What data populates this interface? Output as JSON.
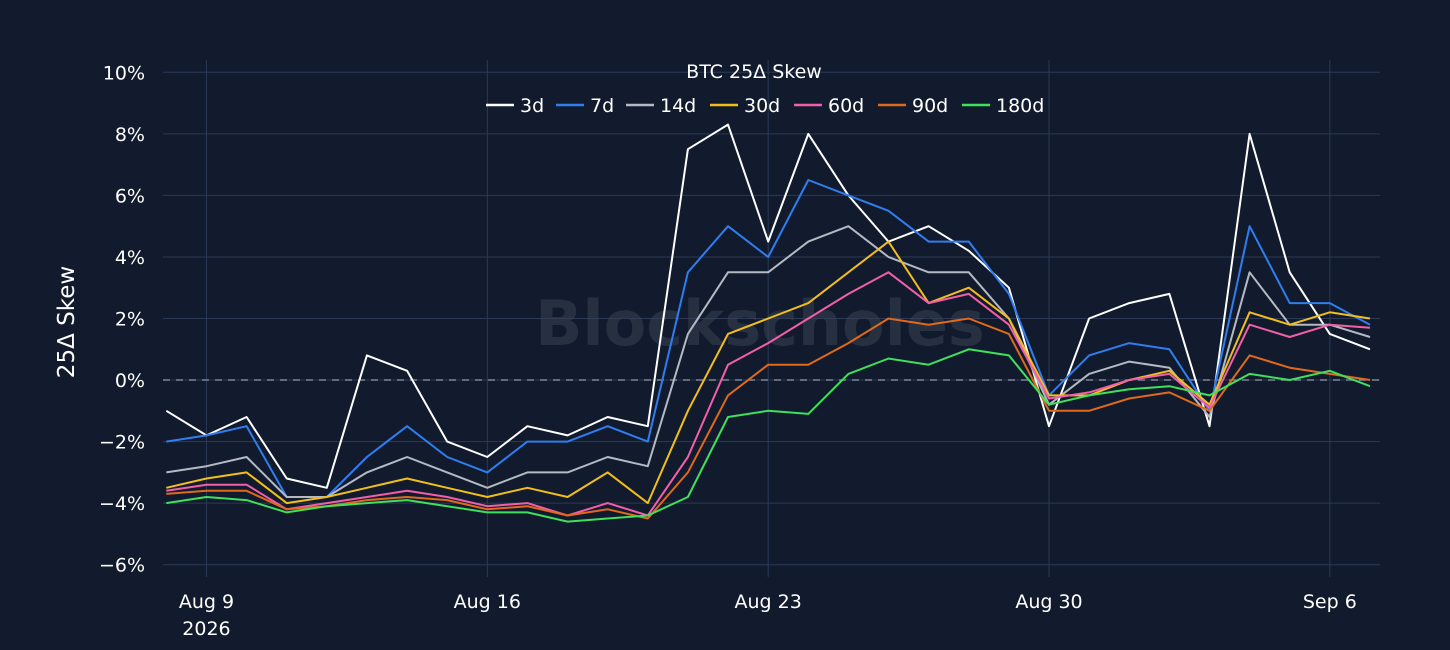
{
  "chart_data": {
    "type": "line",
    "title": "BTC 25Δ Skew",
    "ylabel": "25Δ Skew",
    "xlabel": "",
    "watermark": "Blockscholes",
    "grid": true,
    "legend_placement": "top-center",
    "ylim": [
      -6.4,
      10.4
    ],
    "xlim": [
      "2026-08-07T22:00",
      "2026-09-07T06:00"
    ],
    "y_ticks": [
      -6,
      -4,
      -2,
      0,
      2,
      4,
      6,
      8,
      10
    ],
    "y_tick_labels": [
      "−6%",
      "−4%",
      "−2%",
      "0%",
      "2%",
      "4%",
      "6%",
      "8%",
      "10%"
    ],
    "x_ticks": [
      "2026-08-09",
      "2026-08-16",
      "2026-08-23",
      "2026-08-30",
      "2026-09-06"
    ],
    "x_tick_labels": [
      "Aug 9",
      "Aug 16",
      "Aug 23",
      "Aug 30",
      "Sep 6"
    ],
    "x_tick_sublabel": "2026",
    "zero_line": true,
    "series": [
      {
        "name": "3d",
        "color": "#ffffff",
        "x": [
          "2026-08-08",
          "2026-08-09",
          "2026-08-10",
          "2026-08-11",
          "2026-08-12",
          "2026-08-13",
          "2026-08-14",
          "2026-08-15",
          "2026-08-16",
          "2026-08-17",
          "2026-08-18",
          "2026-08-19",
          "2026-08-20",
          "2026-08-21",
          "2026-08-22",
          "2026-08-23",
          "2026-08-24",
          "2026-08-25",
          "2026-08-26",
          "2026-08-27",
          "2026-08-28",
          "2026-08-29",
          "2026-08-30",
          "2026-08-31",
          "2026-09-01",
          "2026-09-02",
          "2026-09-03",
          "2026-09-04",
          "2026-09-05",
          "2026-09-06",
          "2026-09-07"
        ],
        "y": [
          -1.0,
          -1.8,
          -1.2,
          -3.2,
          -3.5,
          0.8,
          0.3,
          -2.0,
          -2.5,
          -1.5,
          -1.8,
          -1.2,
          -1.5,
          7.5,
          8.3,
          4.5,
          8.0,
          6.0,
          4.5,
          5.0,
          4.2,
          3.0,
          -1.5,
          2.0,
          2.5,
          2.8,
          -1.5,
          8.0,
          3.5,
          1.5,
          1.0
        ]
      },
      {
        "name": "7d",
        "color": "#2f7ef0",
        "x": [
          "2026-08-08",
          "2026-08-09",
          "2026-08-10",
          "2026-08-11",
          "2026-08-12",
          "2026-08-13",
          "2026-08-14",
          "2026-08-15",
          "2026-08-16",
          "2026-08-17",
          "2026-08-18",
          "2026-08-19",
          "2026-08-20",
          "2026-08-21",
          "2026-08-22",
          "2026-08-23",
          "2026-08-24",
          "2026-08-25",
          "2026-08-26",
          "2026-08-27",
          "2026-08-28",
          "2026-08-29",
          "2026-08-30",
          "2026-08-31",
          "2026-09-01",
          "2026-09-02",
          "2026-09-03",
          "2026-09-04",
          "2026-09-05",
          "2026-09-06",
          "2026-09-07"
        ],
        "y": [
          -2.0,
          -1.8,
          -1.5,
          -3.8,
          -3.8,
          -2.5,
          -1.5,
          -2.5,
          -3.0,
          -2.0,
          -2.0,
          -1.5,
          -2.0,
          3.5,
          5.0,
          4.0,
          6.5,
          6.0,
          5.5,
          4.5,
          4.5,
          2.8,
          -0.5,
          0.8,
          1.2,
          1.0,
          -1.0,
          5.0,
          2.5,
          2.5,
          1.8
        ]
      },
      {
        "name": "14d",
        "color": "#b4b9c3",
        "x": [
          "2026-08-08",
          "2026-08-09",
          "2026-08-10",
          "2026-08-11",
          "2026-08-12",
          "2026-08-13",
          "2026-08-14",
          "2026-08-15",
          "2026-08-16",
          "2026-08-17",
          "2026-08-18",
          "2026-08-19",
          "2026-08-20",
          "2026-08-21",
          "2026-08-22",
          "2026-08-23",
          "2026-08-24",
          "2026-08-25",
          "2026-08-26",
          "2026-08-27",
          "2026-08-28",
          "2026-08-29",
          "2026-08-30",
          "2026-08-31",
          "2026-09-01",
          "2026-09-02",
          "2026-09-03",
          "2026-09-04",
          "2026-09-05",
          "2026-09-06",
          "2026-09-07"
        ],
        "y": [
          -3.0,
          -2.8,
          -2.5,
          -3.8,
          -3.8,
          -3.0,
          -2.5,
          -3.0,
          -3.5,
          -3.0,
          -3.0,
          -2.5,
          -2.8,
          1.5,
          3.5,
          3.5,
          4.5,
          5.0,
          4.0,
          3.5,
          3.5,
          2.0,
          -0.8,
          0.2,
          0.6,
          0.4,
          -1.2,
          3.5,
          1.8,
          1.8,
          1.4
        ]
      },
      {
        "name": "30d",
        "color": "#f2be1b",
        "x": [
          "2026-08-08",
          "2026-08-09",
          "2026-08-10",
          "2026-08-11",
          "2026-08-12",
          "2026-08-13",
          "2026-08-14",
          "2026-08-15",
          "2026-08-16",
          "2026-08-17",
          "2026-08-18",
          "2026-08-19",
          "2026-08-20",
          "2026-08-21",
          "2026-08-22",
          "2026-08-23",
          "2026-08-24",
          "2026-08-25",
          "2026-08-26",
          "2026-08-27",
          "2026-08-28",
          "2026-08-29",
          "2026-08-30",
          "2026-08-31",
          "2026-09-01",
          "2026-09-02",
          "2026-09-03",
          "2026-09-04",
          "2026-09-05",
          "2026-09-06",
          "2026-09-07"
        ],
        "y": [
          -3.5,
          -3.2,
          -3.0,
          -4.0,
          -3.8,
          -3.5,
          -3.2,
          -3.5,
          -3.8,
          -3.5,
          -3.8,
          -3.0,
          -4.0,
          -1.0,
          1.5,
          2.0,
          2.5,
          3.5,
          4.5,
          2.5,
          3.0,
          2.0,
          -0.5,
          -0.5,
          0.0,
          0.3,
          -0.8,
          2.2,
          1.8,
          2.2,
          2.0
        ]
      },
      {
        "name": "60d",
        "color": "#f25fa8",
        "x": [
          "2026-08-08",
          "2026-08-09",
          "2026-08-10",
          "2026-08-11",
          "2026-08-12",
          "2026-08-13",
          "2026-08-14",
          "2026-08-15",
          "2026-08-16",
          "2026-08-17",
          "2026-08-18",
          "2026-08-19",
          "2026-08-20",
          "2026-08-21",
          "2026-08-22",
          "2026-08-23",
          "2026-08-24",
          "2026-08-25",
          "2026-08-26",
          "2026-08-27",
          "2026-08-28",
          "2026-08-29",
          "2026-08-30",
          "2026-08-31",
          "2026-09-01",
          "2026-09-02",
          "2026-09-03",
          "2026-09-04",
          "2026-09-05",
          "2026-09-06",
          "2026-09-07"
        ],
        "y": [
          -3.6,
          -3.4,
          -3.4,
          -4.2,
          -4.0,
          -3.8,
          -3.6,
          -3.8,
          -4.1,
          -4.0,
          -4.4,
          -4.0,
          -4.4,
          -2.5,
          0.5,
          1.2,
          2.0,
          2.8,
          3.5,
          2.5,
          2.8,
          1.8,
          -0.6,
          -0.4,
          0.0,
          0.2,
          -0.9,
          1.8,
          1.4,
          1.8,
          1.7
        ]
      },
      {
        "name": "90d",
        "color": "#e0691b",
        "x": [
          "2026-08-08",
          "2026-08-09",
          "2026-08-10",
          "2026-08-11",
          "2026-08-12",
          "2026-08-13",
          "2026-08-14",
          "2026-08-15",
          "2026-08-16",
          "2026-08-17",
          "2026-08-18",
          "2026-08-19",
          "2026-08-20",
          "2026-08-21",
          "2026-08-22",
          "2026-08-23",
          "2026-08-24",
          "2026-08-25",
          "2026-08-26",
          "2026-08-27",
          "2026-08-28",
          "2026-08-29",
          "2026-08-30",
          "2026-08-31",
          "2026-09-01",
          "2026-09-02",
          "2026-09-03",
          "2026-09-04",
          "2026-09-05",
          "2026-09-06",
          "2026-09-07"
        ],
        "y": [
          -3.7,
          -3.6,
          -3.6,
          -4.2,
          -4.1,
          -3.9,
          -3.8,
          -3.9,
          -4.2,
          -4.1,
          -4.4,
          -4.2,
          -4.5,
          -3.0,
          -0.5,
          0.5,
          0.5,
          1.2,
          2.0,
          1.8,
          2.0,
          1.5,
          -1.0,
          -1.0,
          -0.6,
          -0.4,
          -1.0,
          0.8,
          0.4,
          0.2,
          0.0
        ]
      },
      {
        "name": "180d",
        "color": "#3ee05c",
        "x": [
          "2026-08-08",
          "2026-08-09",
          "2026-08-10",
          "2026-08-11",
          "2026-08-12",
          "2026-08-13",
          "2026-08-14",
          "2026-08-15",
          "2026-08-16",
          "2026-08-17",
          "2026-08-18",
          "2026-08-19",
          "2026-08-20",
          "2026-08-21",
          "2026-08-22",
          "2026-08-23",
          "2026-08-24",
          "2026-08-25",
          "2026-08-26",
          "2026-08-27",
          "2026-08-28",
          "2026-08-29",
          "2026-08-30",
          "2026-08-31",
          "2026-09-01",
          "2026-09-02",
          "2026-09-03",
          "2026-09-04",
          "2026-09-05",
          "2026-09-06",
          "2026-09-07"
        ],
        "y": [
          -4.0,
          -3.8,
          -3.9,
          -4.3,
          -4.1,
          -4.0,
          -3.9,
          -4.1,
          -4.3,
          -4.3,
          -4.6,
          -4.5,
          -4.4,
          -3.8,
          -1.2,
          -1.0,
          -1.1,
          0.2,
          0.7,
          0.5,
          1.0,
          0.8,
          -0.8,
          -0.5,
          -0.3,
          -0.2,
          -0.5,
          0.2,
          0.0,
          0.3,
          -0.2
        ]
      }
    ]
  }
}
